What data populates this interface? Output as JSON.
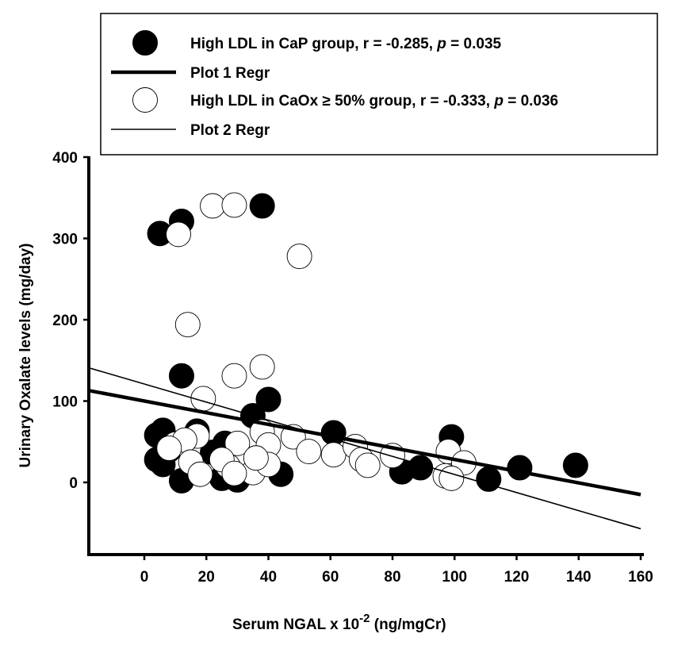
{
  "chart_data": {
    "type": "scatter",
    "xlabel": {
      "prefix": "Serum NGAL x 10",
      "superscript": "-2",
      "suffix": " (ng/mgCr)"
    },
    "ylabel": "Urinary Oxalate levels (mg/day)",
    "xlim": [
      -18,
      160
    ],
    "ylim": [
      -90,
      400
    ],
    "xticks": [
      "0",
      "20",
      "40",
      "60",
      "80",
      "100",
      "120",
      "140",
      "160"
    ],
    "yticks": [
      "0",
      "100",
      "200",
      "300",
      "400"
    ],
    "legend_position": "top",
    "series": [
      {
        "kind": "points",
        "color": "#000000",
        "fill": "#000000",
        "label": {
          "pre": "High LDL in CaP group, r = -0.285, ",
          "p": "p",
          "post": " = 0.035"
        },
        "points": [
          [
            5,
            306
          ],
          [
            12,
            321
          ],
          [
            38,
            340
          ],
          [
            12,
            131
          ],
          [
            40,
            102
          ],
          [
            35,
            82
          ],
          [
            61,
            61
          ],
          [
            99,
            56
          ],
          [
            4,
            58
          ],
          [
            6,
            64
          ],
          [
            17,
            63
          ],
          [
            26,
            48
          ],
          [
            22,
            37
          ],
          [
            4,
            28
          ],
          [
            6,
            22
          ],
          [
            12,
            2
          ],
          [
            25,
            5
          ],
          [
            30,
            3
          ],
          [
            44,
            10
          ],
          [
            83,
            13
          ],
          [
            89,
            18
          ],
          [
            111,
            4
          ],
          [
            121,
            18
          ],
          [
            139,
            21
          ],
          [
            8,
            40
          ]
        ]
      },
      {
        "kind": "line",
        "stroke": "#000000",
        "width": 4.5,
        "label": "Plot 1 Regr",
        "x": [
          -18,
          160
        ],
        "y": [
          113,
          -15
        ]
      },
      {
        "kind": "points",
        "color": "#000000",
        "fill": "#ffffff",
        "label": {
          "pre": "High LDL in CaOx ≥ 50% group, r = -0.333, ",
          "p": "p",
          "post": " = 0.036"
        },
        "points": [
          [
            11,
            305
          ],
          [
            22,
            340
          ],
          [
            29,
            341
          ],
          [
            50,
            278
          ],
          [
            14,
            194
          ],
          [
            38,
            142
          ],
          [
            29,
            131
          ],
          [
            19,
            103
          ],
          [
            17,
            57
          ],
          [
            10,
            47
          ],
          [
            13,
            52
          ],
          [
            38,
            62
          ],
          [
            40,
            46
          ],
          [
            30,
            48
          ],
          [
            27,
            20
          ],
          [
            25,
            28
          ],
          [
            35,
            12
          ],
          [
            29,
            11
          ],
          [
            40,
            22
          ],
          [
            15,
            25
          ],
          [
            18,
            10
          ],
          [
            48,
            56
          ],
          [
            53,
            38
          ],
          [
            61,
            34
          ],
          [
            68,
            44
          ],
          [
            70,
            28
          ],
          [
            72,
            21
          ],
          [
            80,
            33
          ],
          [
            98,
            38
          ],
          [
            103,
            24
          ],
          [
            97,
            8
          ],
          [
            99,
            5
          ],
          [
            8,
            42
          ],
          [
            36,
            30
          ]
        ]
      },
      {
        "kind": "line",
        "stroke": "#000000",
        "width": 1.6,
        "label": "Plot 2 Regr",
        "x": [
          -18,
          160
        ],
        "y": [
          141,
          -57
        ]
      }
    ]
  }
}
